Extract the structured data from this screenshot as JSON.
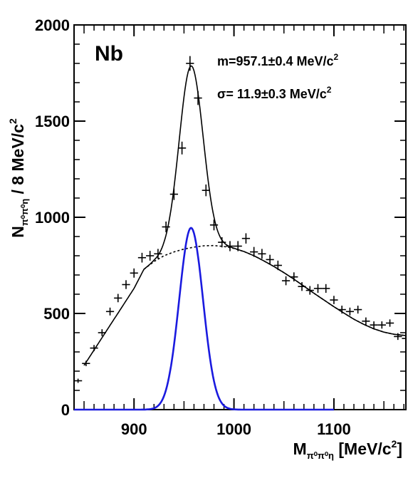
{
  "chart_data": {
    "type": "scatter",
    "title": "",
    "panel_label": "Nb",
    "annotations": {
      "mass": "m=957.1±0.4 MeV/c",
      "width": "σ= 11.9±0.3 MeV/c",
      "power": "2"
    },
    "xlabel": {
      "main": "M",
      "sub": "π⁰π⁰η",
      "unit": " [MeV/c",
      "sup": "2",
      "close": "]"
    },
    "ylabel": {
      "main": "N",
      "sub": "π⁰π⁰η",
      "unit": " / 8 MeV/c",
      "sup": "2"
    },
    "xlim": [
      840,
      1172
    ],
    "ylim": [
      0,
      2000
    ],
    "xticks": [
      900,
      1000,
      1100
    ],
    "xtick_labels": [
      "900",
      "1000",
      "1100"
    ],
    "yticks": [
      0,
      500,
      1000,
      1500,
      2000
    ],
    "ytick_labels": [
      "0",
      "500",
      "1000",
      "1500",
      "2000"
    ],
    "bin_width": 8,
    "series": [
      {
        "kind": "data_points",
        "color": "#000000",
        "points": [
          [
            844,
            150
          ],
          [
            852,
            240
          ],
          [
            860,
            320
          ],
          [
            868,
            400
          ],
          [
            876,
            510
          ],
          [
            884,
            580
          ],
          [
            892,
            650
          ],
          [
            900,
            710
          ],
          [
            908,
            790
          ],
          [
            916,
            800
          ],
          [
            924,
            810
          ],
          [
            932,
            950
          ],
          [
            940,
            1120
          ],
          [
            948,
            1360
          ],
          [
            956,
            1800
          ],
          [
            964,
            1620
          ],
          [
            972,
            1140
          ],
          [
            980,
            960
          ],
          [
            988,
            870
          ],
          [
            996,
            850
          ],
          [
            1004,
            850
          ],
          [
            1012,
            890
          ],
          [
            1020,
            820
          ],
          [
            1028,
            810
          ],
          [
            1036,
            780
          ],
          [
            1044,
            750
          ],
          [
            1052,
            670
          ],
          [
            1060,
            690
          ],
          [
            1068,
            640
          ],
          [
            1076,
            620
          ],
          [
            1084,
            630
          ],
          [
            1092,
            630
          ],
          [
            1100,
            570
          ],
          [
            1108,
            520
          ],
          [
            1116,
            510
          ],
          [
            1124,
            520
          ],
          [
            1132,
            460
          ],
          [
            1140,
            440
          ],
          [
            1148,
            440
          ],
          [
            1156,
            450
          ],
          [
            1164,
            380
          ],
          [
            1172,
            370
          ]
        ]
      },
      {
        "kind": "total_fit",
        "color": "#000000",
        "style": "solid"
      },
      {
        "kind": "background_fit",
        "color": "#000000",
        "style": "dashed",
        "points": [
          [
            910,
            730
          ],
          [
            920,
            770
          ],
          [
            930,
            800
          ],
          [
            940,
            820
          ],
          [
            950,
            835
          ],
          [
            960,
            845
          ],
          [
            970,
            852
          ],
          [
            980,
            853
          ],
          [
            990,
            848
          ],
          [
            1000,
            838
          ],
          [
            1010,
            822
          ],
          [
            1020,
            800
          ],
          [
            1030,
            773
          ],
          [
            1040,
            744
          ],
          [
            1050,
            712
          ],
          [
            1060,
            678
          ],
          [
            1070,
            642
          ],
          [
            1080,
            605
          ],
          [
            1090,
            570
          ],
          [
            1100,
            535
          ],
          [
            1110,
            502
          ],
          [
            1120,
            470
          ],
          [
            1130,
            443
          ],
          [
            1140,
            420
          ],
          [
            1150,
            403
          ],
          [
            1160,
            392
          ],
          [
            1172,
            385
          ]
        ]
      },
      {
        "kind": "signal_fit",
        "color": "#1a1adf",
        "style": "solid",
        "amplitude": 945,
        "mean": 957.1,
        "sigma": 11.9,
        "x_range": [
          840,
          1100
        ]
      }
    ],
    "low_mass_curve": [
      [
        850,
        230
      ],
      [
        860,
        310
      ],
      [
        870,
        390
      ],
      [
        880,
        470
      ],
      [
        890,
        550
      ],
      [
        900,
        630
      ],
      [
        910,
        730
      ]
    ],
    "legend": "none",
    "grid": false
  }
}
